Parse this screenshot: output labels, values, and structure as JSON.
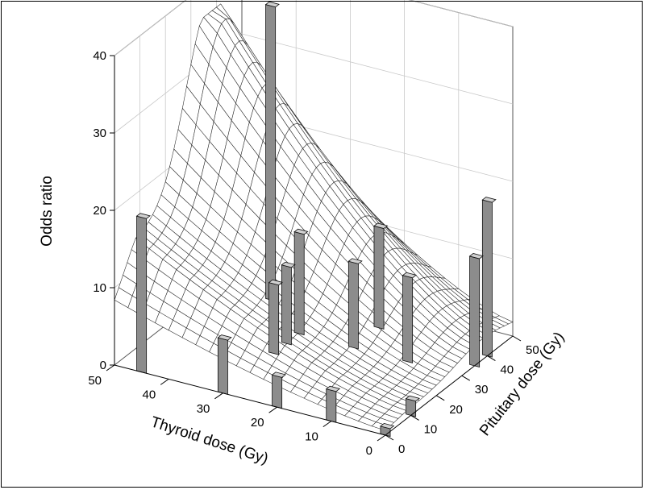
{
  "chart_data": {
    "type": "3d-surface",
    "title": "",
    "zlabel": "Odds ratio",
    "xlabel": "Thyroid dose (Gy)",
    "ylabel": "Pituitary dose (Gy)",
    "z_ticks": [
      "0",
      "10",
      "20",
      "30",
      "40"
    ],
    "x_ticks": [
      "0",
      "10",
      "20",
      "30",
      "40",
      "50"
    ],
    "y_ticks": [
      "0",
      "10",
      "20",
      "30",
      "40",
      "50"
    ],
    "xlim": [
      0,
      50
    ],
    "ylim": [
      0,
      50
    ],
    "zlim": [
      0,
      40
    ],
    "grid": true,
    "surface": {
      "description_values_along_thyroid_at_pituitary_0": [
        {
          "thyroid": 0,
          "odds_ratio": 1
        },
        {
          "thyroid": 10,
          "odds_ratio": 2
        },
        {
          "thyroid": 20,
          "odds_ratio": 6
        },
        {
          "thyroid": 30,
          "odds_ratio": 10
        },
        {
          "thyroid": 40,
          "odds_ratio": 13
        },
        {
          "thyroid": 50,
          "odds_ratio": 14
        }
      ],
      "peak_odds_ratio": 36
    },
    "bars": [
      {
        "thyroid": 0,
        "pituitary": 0,
        "odds_ratio": 1
      },
      {
        "thyroid": 10,
        "pituitary": 0,
        "odds_ratio": 4
      },
      {
        "thyroid": 20,
        "pituitary": 0,
        "odds_ratio": 4
      },
      {
        "thyroid": 30,
        "pituitary": 0,
        "odds_ratio": 7
      },
      {
        "thyroid": 45,
        "pituitary": 0,
        "odds_ratio": 20
      },
      {
        "thyroid": 0,
        "pituitary": 10,
        "odds_ratio": 2
      },
      {
        "thyroid": 0,
        "pituitary": 35,
        "odds_ratio": 14
      },
      {
        "thyroid": 0,
        "pituitary": 40,
        "odds_ratio": 20
      },
      {
        "thyroid": 10,
        "pituitary": 30,
        "odds_ratio": 11
      },
      {
        "thyroid": 20,
        "pituitary": 30,
        "odds_ratio": 11
      },
      {
        "thyroid": 20,
        "pituitary": 40,
        "odds_ratio": 13
      },
      {
        "thyroid": 30,
        "pituitary": 20,
        "odds_ratio": 9
      },
      {
        "thyroid": 30,
        "pituitary": 25,
        "odds_ratio": 10
      },
      {
        "thyroid": 30,
        "pituitary": 30,
        "odds_ratio": 13
      },
      {
        "thyroid": 40,
        "pituitary": 40,
        "odds_ratio": 38
      }
    ]
  }
}
